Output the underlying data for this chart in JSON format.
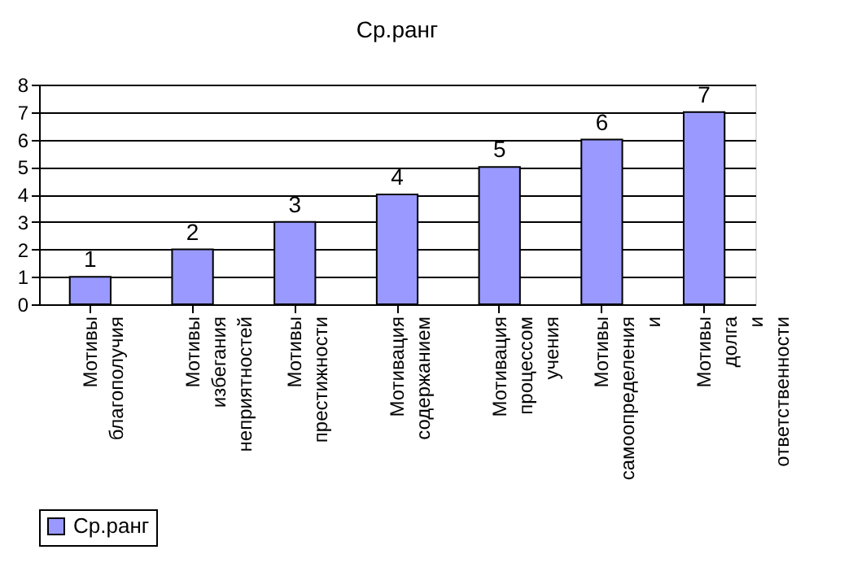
{
  "chart_data": {
    "type": "bar",
    "title": "Ср.ранг",
    "categories": [
      "Мотивы благополучия",
      "Мотивы избегания неприятностей",
      "Мотивы престижности",
      "Мотивация содержанием",
      "Мотивация процессом учения",
      "Мотивы самоопределения и",
      "Мотивы долга и ответственности"
    ],
    "series": [
      {
        "name": "Ср.ранг",
        "color": "#9999ff",
        "values": [
          1,
          2,
          3,
          4,
          5,
          6,
          7
        ]
      }
    ],
    "ylim": [
      0,
      8
    ],
    "yticks": [
      0,
      1,
      2,
      3,
      4,
      5,
      6,
      7,
      8
    ],
    "grid": "y",
    "legend": "bottom",
    "data_labels": true
  }
}
